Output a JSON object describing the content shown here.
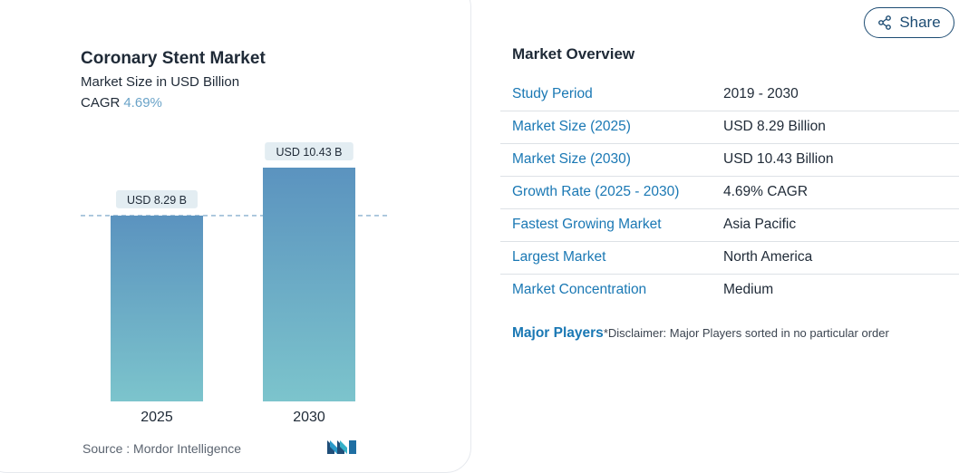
{
  "chart": {
    "title": "Coronary Stent Market",
    "subtitle": "Market Size in USD Billion",
    "cagr_label": "CAGR",
    "cagr_value": "4.69%",
    "source": "Source :  Mordor Intelligence",
    "logo_name": "mordor-intelligence-logo"
  },
  "chart_data": {
    "type": "bar",
    "categories": [
      "2025",
      "2030"
    ],
    "values": [
      8.29,
      10.43
    ],
    "value_labels": [
      "USD 8.29 B",
      "USD 10.43 B"
    ],
    "title": "Coronary Stent Market",
    "subtitle": "Market Size in USD Billion",
    "xlabel": "",
    "ylabel": "",
    "ylim": [
      0,
      10.43
    ],
    "grid": false,
    "reference_line": "dashed line at 2025 value",
    "colors": {
      "bar_top": "#5b93bf",
      "bar_bottom": "#7cc4cc",
      "label_bg": "#e3edf2",
      "ref_line": "#6f9fc4"
    }
  },
  "share": {
    "label": "Share",
    "icon": "share-icon"
  },
  "overview": {
    "title": "Market Overview",
    "rows": [
      {
        "key": "Study Period",
        "value": "2019 - 2030"
      },
      {
        "key": "Market Size (2025)",
        "value": "USD 8.29 Billion"
      },
      {
        "key": "Market Size (2030)",
        "value": "USD 10.43 Billion"
      },
      {
        "key": "Growth Rate (2025 - 2030)",
        "value": "4.69% CAGR"
      },
      {
        "key": "Fastest Growing Market",
        "value": "Asia Pacific"
      },
      {
        "key": "Largest Market",
        "value": "North America"
      },
      {
        "key": "Market Concentration",
        "value": "Medium"
      }
    ],
    "players_label": "Major Players",
    "players_disclaimer": "*Disclaimer: Major Players sorted in no particular order"
  }
}
